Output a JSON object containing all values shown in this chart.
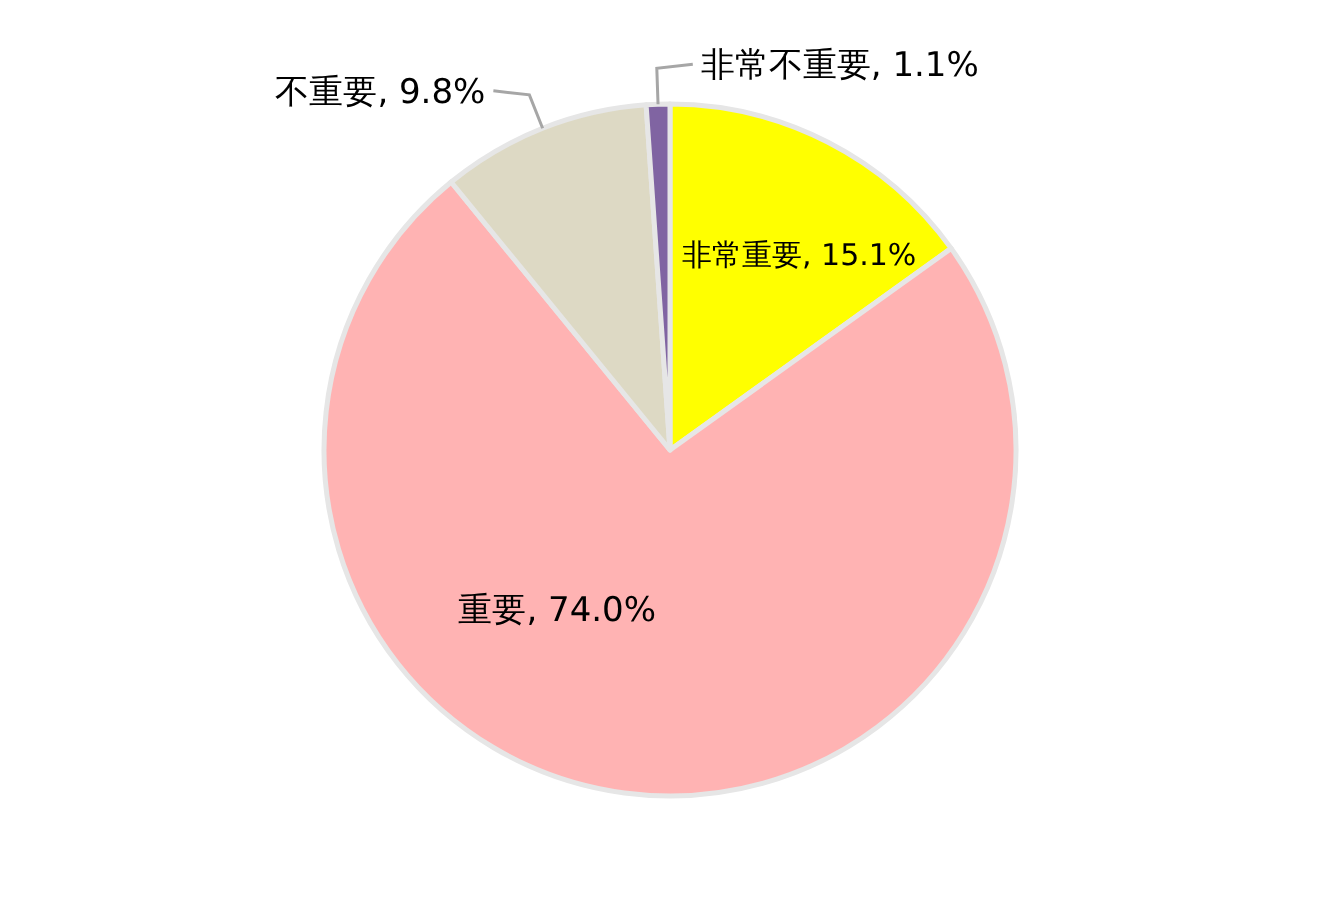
{
  "chart_data": {
    "type": "pie",
    "categories": [
      "非常重要",
      "重要",
      "不重要",
      "非常不重要"
    ],
    "values": [
      15.1,
      74.0,
      9.8,
      1.1
    ],
    "value_labels": [
      "15.1%",
      "74.0%",
      "9.8%",
      "1.1%"
    ],
    "colors": [
      "#ffff00",
      "#ffb3b3",
      "#ddd9c4",
      "#8064a2"
    ]
  }
}
